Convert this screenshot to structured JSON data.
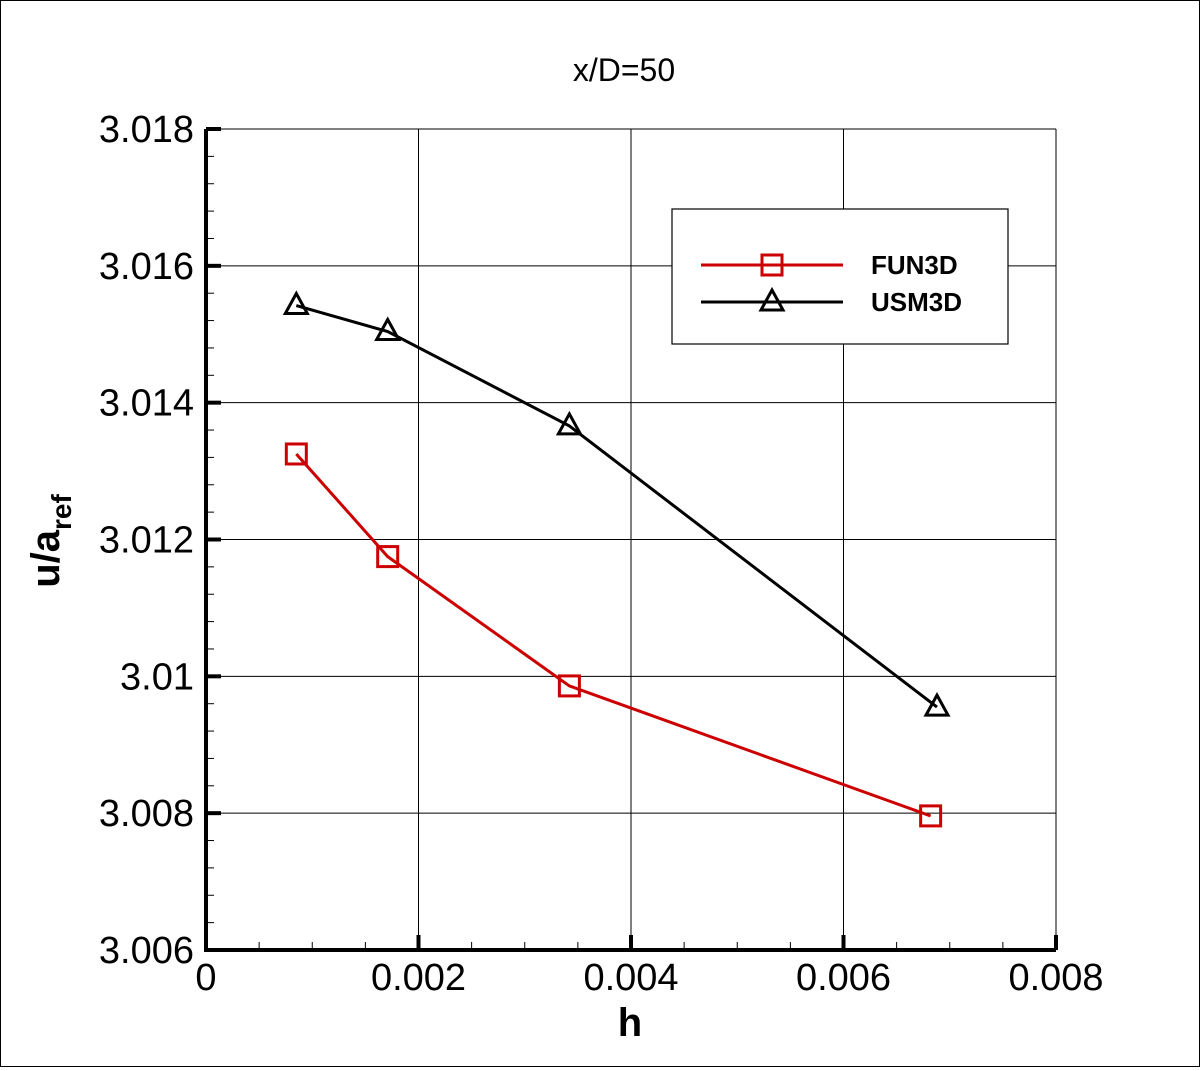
{
  "chart_data": {
    "type": "line",
    "title": "x/D=50",
    "xlabel": "h",
    "ylabel_main": "u/a",
    "ylabel_sub": "ref",
    "xlim": [
      0,
      0.008
    ],
    "ylim": [
      3.006,
      3.018
    ],
    "x_ticks": [
      0,
      0.002,
      0.004,
      0.006,
      0.008
    ],
    "x_tick_labels": [
      "0",
      "0.002",
      "0.004",
      "0.006",
      "0.008"
    ],
    "y_ticks": [
      3.006,
      3.008,
      3.01,
      3.012,
      3.014,
      3.016,
      3.018
    ],
    "y_tick_labels": [
      "3.006",
      "3.008",
      "3.01",
      "3.012",
      "3.014",
      "3.016",
      "3.018"
    ],
    "x_minor_step": 0.0005,
    "y_minor_step": 0.0004,
    "grid": true,
    "legend_position": "top-right",
    "series": [
      {
        "name": "FUN3D",
        "color": "#cc0000",
        "marker": "square",
        "x": [
          0.00085,
          0.00171,
          0.00342,
          0.00682
        ],
        "y": [
          3.01325,
          3.01175,
          3.00986,
          3.00796
        ]
      },
      {
        "name": "USM3D",
        "color": "#000000",
        "marker": "triangle",
        "x": [
          0.00085,
          0.00171,
          0.00342,
          0.00688
        ],
        "y": [
          3.01542,
          3.01504,
          3.01366,
          3.00955
        ]
      }
    ]
  }
}
